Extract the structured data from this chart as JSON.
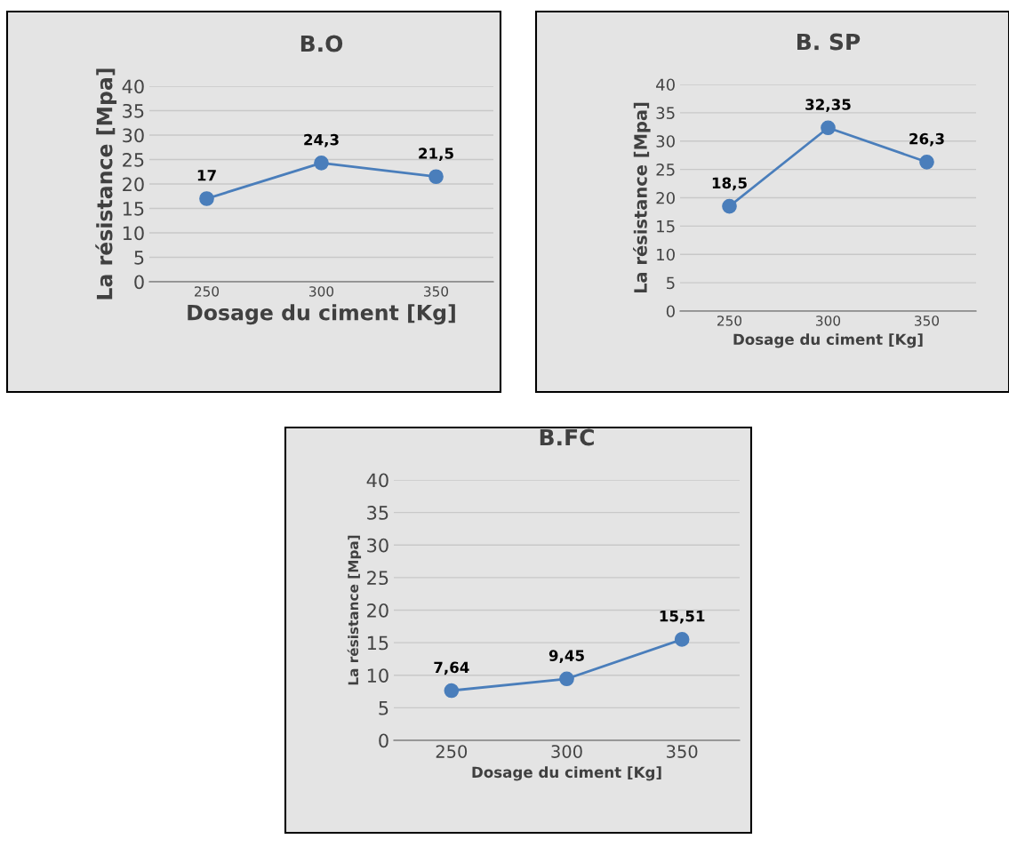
{
  "chart_data": [
    {
      "type": "line",
      "title": "B.O",
      "xlabel": "Dosage du ciment [Kg]",
      "ylabel": "La résistance [Mpa]",
      "categories": [
        "250",
        "300",
        "350"
      ],
      "series": [
        {
          "color": "#4a7ebb",
          "values": [
            17,
            24.3,
            21.5
          ],
          "value_labels": [
            "17",
            "24,3",
            "21,5"
          ]
        }
      ],
      "ylim": [
        0,
        40
      ],
      "yticks": [
        0,
        5,
        10,
        15,
        20,
        25,
        30,
        35,
        40
      ],
      "grid": "y",
      "marker": "circle",
      "line_style": "solid"
    },
    {
      "type": "line",
      "title": "B. SP",
      "xlabel": "Dosage du ciment [Kg]",
      "ylabel": "La résistance [Mpa]",
      "categories": [
        "250",
        "300",
        "350"
      ],
      "series": [
        {
          "color": "#4a7ebb",
          "values": [
            18.5,
            32.35,
            26.3
          ],
          "value_labels": [
            "18,5",
            "32,35",
            "26,3"
          ]
        }
      ],
      "ylim": [
        0,
        40
      ],
      "yticks": [
        0,
        5,
        10,
        15,
        20,
        25,
        30,
        35,
        40
      ],
      "grid": "y",
      "marker": "circle",
      "line_style": "solid"
    },
    {
      "type": "line",
      "title": "B.FC",
      "xlabel": "Dosage du ciment [Kg]",
      "ylabel": "La résistance [Mpa]",
      "categories": [
        "250",
        "300",
        "350"
      ],
      "series": [
        {
          "color": "#4a7ebb",
          "values": [
            7.64,
            9.45,
            15.51
          ],
          "value_labels": [
            "7,64",
            "9,45",
            "15,51"
          ]
        }
      ],
      "ylim": [
        0,
        40
      ],
      "yticks": [
        0,
        5,
        10,
        15,
        20,
        25,
        30,
        35,
        40
      ],
      "grid": "y",
      "marker": "circle",
      "line_style": "solid"
    }
  ]
}
